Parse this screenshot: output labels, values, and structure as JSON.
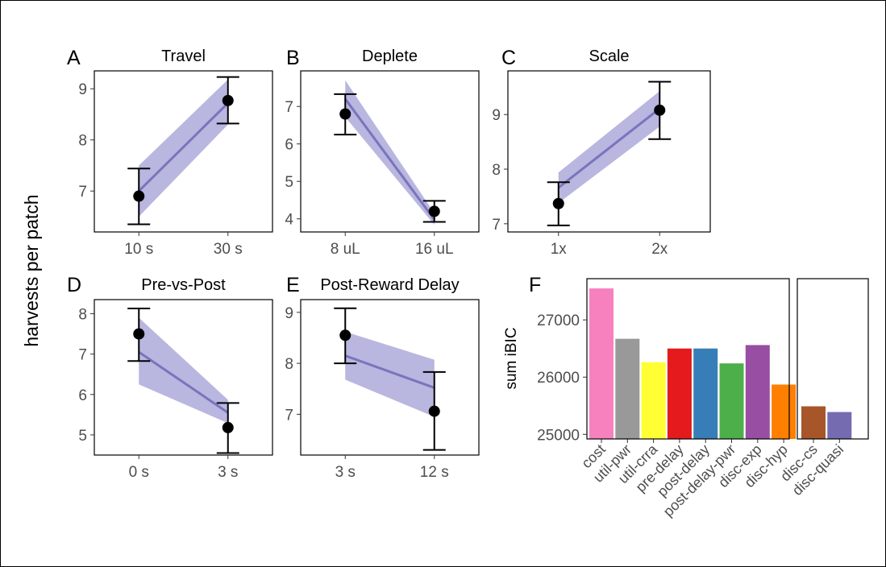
{
  "y_axis_label": "harvests per patch",
  "colors": {
    "band": "#8b86c9",
    "line": "#7a74bd",
    "point": "#000000"
  },
  "chart_data": [
    {
      "id": "A",
      "letter": "A",
      "type": "line",
      "title": "Travel",
      "categories": [
        "10 s",
        "30 s"
      ],
      "points": [
        6.9,
        8.77
      ],
      "err_low": [
        6.35,
        8.32
      ],
      "err_high": [
        7.44,
        9.23
      ],
      "fit": [
        7.0,
        8.72
      ],
      "band_low": [
        6.5,
        8.3
      ],
      "band_high": [
        7.5,
        9.18
      ],
      "ylim": [
        6.2,
        9.35
      ],
      "yticks": [
        7,
        8,
        9
      ]
    },
    {
      "id": "B",
      "letter": "B",
      "type": "line",
      "title": "Deplete",
      "categories": [
        "8 uL",
        "16 uL"
      ],
      "points": [
        6.8,
        4.2
      ],
      "err_low": [
        6.25,
        3.92
      ],
      "err_high": [
        7.33,
        4.48
      ],
      "fit": [
        7.2,
        3.98
      ],
      "band_low": [
        6.72,
        3.84
      ],
      "band_high": [
        7.7,
        4.15
      ],
      "ylim": [
        3.65,
        7.95
      ],
      "yticks": [
        4,
        5,
        6,
        7
      ]
    },
    {
      "id": "C",
      "letter": "C",
      "type": "line",
      "title": "Scale",
      "categories": [
        "1x",
        "2x"
      ],
      "points": [
        7.37,
        9.08
      ],
      "err_low": [
        6.97,
        8.55
      ],
      "err_high": [
        7.76,
        9.6
      ],
      "fit": [
        7.66,
        9.11
      ],
      "band_low": [
        7.38,
        8.78
      ],
      "band_high": [
        7.94,
        9.43
      ],
      "ylim": [
        6.85,
        9.8
      ],
      "yticks": [
        7,
        8,
        9
      ]
    },
    {
      "id": "D",
      "letter": "D",
      "type": "line",
      "title": "Pre-vs-Post",
      "categories": [
        "0 s",
        "3 s"
      ],
      "points": [
        7.5,
        5.18
      ],
      "err_low": [
        6.83,
        4.55
      ],
      "err_high": [
        8.13,
        5.79
      ],
      "fit": [
        7.05,
        5.55
      ],
      "band_low": [
        6.25,
        5.29
      ],
      "band_high": [
        7.9,
        5.87
      ],
      "ylim": [
        4.5,
        8.35
      ],
      "yticks": [
        5,
        6,
        7,
        8
      ]
    },
    {
      "id": "E",
      "letter": "E",
      "type": "line",
      "title": "Post-Reward Delay",
      "categories": [
        "3 s",
        "12 s"
      ],
      "points": [
        8.55,
        7.06
      ],
      "err_low": [
        8.0,
        6.3
      ],
      "err_high": [
        9.08,
        7.83
      ],
      "fit": [
        8.15,
        7.52
      ],
      "band_low": [
        7.68,
        6.95
      ],
      "band_high": [
        8.62,
        8.07
      ],
      "ylim": [
        6.2,
        9.25
      ],
      "yticks": [
        7,
        8,
        9
      ]
    },
    {
      "id": "F",
      "letter": "F",
      "type": "bar",
      "ylabel": "sum iBIC",
      "ylim": [
        24920,
        27720
      ],
      "yticks": [
        25000,
        26000,
        27000
      ],
      "groups": [
        {
          "categories": [
            "cost",
            "util-pwr",
            "util-crra",
            "pre-delay",
            "post-delay",
            "post-delay-pwr",
            "disc-exp",
            "disc-hyp"
          ],
          "values": [
            27550,
            26670,
            26260,
            26500,
            26500,
            26240,
            26560,
            25870
          ],
          "colors": [
            "#f781bf",
            "#999999",
            "#ffff33",
            "#e41a1c",
            "#377eb8",
            "#4daf4a",
            "#984ea3",
            "#ff7f00"
          ]
        },
        {
          "categories": [
            "disc-cs",
            "disc-quasi"
          ],
          "values": [
            25490,
            25390
          ],
          "colors": [
            "#a65628",
            "#756bb1"
          ]
        }
      ]
    }
  ]
}
